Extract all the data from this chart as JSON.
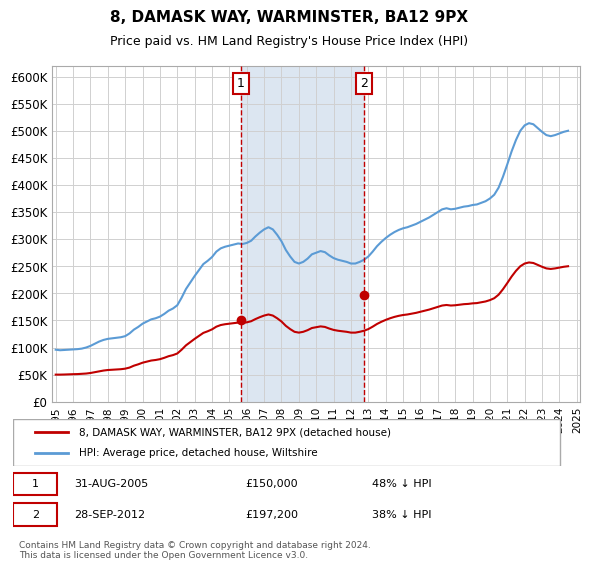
{
  "title": "8, DAMASK WAY, WARMINSTER, BA12 9PX",
  "subtitle": "Price paid vs. HM Land Registry's House Price Index (HPI)",
  "ylabel": "",
  "xlabel": "",
  "ylim": [
    0,
    620000
  ],
  "yticks": [
    0,
    50000,
    100000,
    150000,
    200000,
    250000,
    300000,
    350000,
    400000,
    450000,
    500000,
    550000,
    600000
  ],
  "ytick_labels": [
    "£0",
    "£50K",
    "£100K",
    "£150K",
    "£200K",
    "£250K",
    "£300K",
    "£350K",
    "£400K",
    "£450K",
    "£500K",
    "£550K",
    "£600K"
  ],
  "sale1_date": 2005.664,
  "sale1_price": 150000,
  "sale1_label": "1",
  "sale1_text": "31-AUG-2005",
  "sale1_amount": "£150,000",
  "sale1_pct": "48% ↓ HPI",
  "sale2_date": 2012.747,
  "sale2_price": 197200,
  "sale2_label": "2",
  "sale2_text": "28-SEP-2012",
  "sale2_amount": "£197,200",
  "sale2_pct": "38% ↓ HPI",
  "hpi_color": "#5b9bd5",
  "property_color": "#c00000",
  "shade_color": "#dce6f1",
  "marker_box_color": "#c00000",
  "grid_color": "#d0d0d0",
  "background_color": "#ffffff",
  "legend_line1": "8, DAMASK WAY, WARMINSTER, BA12 9PX (detached house)",
  "legend_line2": "HPI: Average price, detached house, Wiltshire",
  "footer": "Contains HM Land Registry data © Crown copyright and database right 2024.\nThis data is licensed under the Open Government Licence v3.0.",
  "hpi_x": [
    1995,
    1995.25,
    1995.5,
    1995.75,
    1996,
    1996.25,
    1996.5,
    1996.75,
    1997,
    1997.25,
    1997.5,
    1997.75,
    1998,
    1998.25,
    1998.5,
    1998.75,
    1999,
    1999.25,
    1999.5,
    1999.75,
    2000,
    2000.25,
    2000.5,
    2000.75,
    2001,
    2001.25,
    2001.5,
    2001.75,
    2002,
    2002.25,
    2002.5,
    2002.75,
    2003,
    2003.25,
    2003.5,
    2003.75,
    2004,
    2004.25,
    2004.5,
    2004.75,
    2005,
    2005.25,
    2005.5,
    2005.75,
    2006,
    2006.25,
    2006.5,
    2006.75,
    2007,
    2007.25,
    2007.5,
    2007.75,
    2008,
    2008.25,
    2008.5,
    2008.75,
    2009,
    2009.25,
    2009.5,
    2009.75,
    2010,
    2010.25,
    2010.5,
    2010.75,
    2011,
    2011.25,
    2011.5,
    2011.75,
    2012,
    2012.25,
    2012.5,
    2012.75,
    2013,
    2013.25,
    2013.5,
    2013.75,
    2014,
    2014.25,
    2014.5,
    2014.75,
    2015,
    2015.25,
    2015.5,
    2015.75,
    2016,
    2016.25,
    2016.5,
    2016.75,
    2017,
    2017.25,
    2017.5,
    2017.75,
    2018,
    2018.25,
    2018.5,
    2018.75,
    2019,
    2019.25,
    2019.5,
    2019.75,
    2020,
    2020.25,
    2020.5,
    2020.75,
    2021,
    2021.25,
    2021.5,
    2021.75,
    2022,
    2022.25,
    2022.5,
    2022.75,
    2023,
    2023.25,
    2023.5,
    2023.75,
    2024,
    2024.25,
    2024.5
  ],
  "hpi_y": [
    96000,
    95000,
    95500,
    96000,
    96500,
    97000,
    98000,
    100000,
    103000,
    107000,
    111000,
    114000,
    116000,
    117000,
    118000,
    119000,
    121000,
    126000,
    133000,
    138000,
    144000,
    148000,
    152000,
    154000,
    157000,
    162000,
    168000,
    172000,
    178000,
    192000,
    208000,
    220000,
    232000,
    243000,
    254000,
    260000,
    267000,
    277000,
    283000,
    286000,
    288000,
    290000,
    292000,
    291000,
    293000,
    297000,
    305000,
    312000,
    318000,
    322000,
    318000,
    308000,
    296000,
    280000,
    268000,
    258000,
    255000,
    258000,
    264000,
    272000,
    275000,
    278000,
    276000,
    270000,
    265000,
    262000,
    260000,
    258000,
    255000,
    255000,
    258000,
    262000,
    268000,
    277000,
    287000,
    295000,
    302000,
    308000,
    313000,
    317000,
    320000,
    322000,
    325000,
    328000,
    332000,
    336000,
    340000,
    345000,
    350000,
    355000,
    357000,
    355000,
    356000,
    358000,
    360000,
    361000,
    363000,
    364000,
    367000,
    370000,
    375000,
    382000,
    395000,
    415000,
    438000,
    462000,
    483000,
    500000,
    510000,
    514000,
    512000,
    505000,
    498000,
    492000,
    490000,
    492000,
    495000,
    498000,
    500000
  ],
  "prop_x": [
    1995,
    1995.25,
    1995.5,
    1995.75,
    1996,
    1996.25,
    1996.5,
    1996.75,
    1997,
    1997.25,
    1997.5,
    1997.75,
    1998,
    1998.25,
    1998.5,
    1998.75,
    1999,
    1999.25,
    1999.5,
    1999.75,
    2000,
    2000.25,
    2000.5,
    2000.75,
    2001,
    2001.25,
    2001.5,
    2001.75,
    2002,
    2002.25,
    2002.5,
    2002.75,
    2003,
    2003.25,
    2003.5,
    2003.75,
    2004,
    2004.25,
    2004.5,
    2004.75,
    2005,
    2005.25,
    2005.5,
    2005.75,
    2006,
    2006.25,
    2006.5,
    2006.75,
    2007,
    2007.25,
    2007.5,
    2007.75,
    2008,
    2008.25,
    2008.5,
    2008.75,
    2009,
    2009.25,
    2009.5,
    2009.75,
    2010,
    2010.25,
    2010.5,
    2010.75,
    2011,
    2011.25,
    2011.5,
    2011.75,
    2012,
    2012.25,
    2012.5,
    2012.75,
    2013,
    2013.25,
    2013.5,
    2013.75,
    2014,
    2014.25,
    2014.5,
    2014.75,
    2015,
    2015.25,
    2015.5,
    2015.75,
    2016,
    2016.25,
    2016.5,
    2016.75,
    2017,
    2017.25,
    2017.5,
    2017.75,
    2018,
    2018.25,
    2018.5,
    2018.75,
    2019,
    2019.25,
    2019.5,
    2019.75,
    2020,
    2020.25,
    2020.5,
    2020.75,
    2021,
    2021.25,
    2021.5,
    2021.75,
    2022,
    2022.25,
    2022.5,
    2022.75,
    2023,
    2023.25,
    2023.5,
    2023.75,
    2024,
    2024.25,
    2024.5
  ],
  "prop_y": [
    50000,
    50000,
    50200,
    50500,
    50800,
    51000,
    51500,
    52000,
    53000,
    54500,
    56000,
    57500,
    58500,
    59000,
    59500,
    60000,
    61000,
    63000,
    66500,
    69000,
    72000,
    74000,
    76000,
    77000,
    78500,
    81000,
    84000,
    86000,
    89000,
    96000,
    104000,
    110000,
    116000,
    121500,
    127000,
    130000,
    133500,
    138500,
    141500,
    143000,
    144000,
    145000,
    146000,
    145500,
    146500,
    148500,
    152500,
    156000,
    159000,
    161000,
    159000,
    154000,
    148000,
    140000,
    134000,
    129000,
    127500,
    129000,
    132000,
    136000,
    137500,
    139000,
    138000,
    135000,
    132500,
    131000,
    130000,
    129000,
    127500,
    127500,
    129000,
    131000,
    134000,
    138500,
    143500,
    147500,
    151000,
    154000,
    156500,
    158500,
    160000,
    161000,
    162500,
    164000,
    166000,
    168000,
    170000,
    172500,
    175000,
    177500,
    178500,
    177500,
    178000,
    179000,
    180000,
    180500,
    181500,
    182000,
    183500,
    185000,
    187500,
    191000,
    197500,
    207500,
    219000,
    231000,
    241500,
    250000,
    255000,
    257000,
    256000,
    252500,
    249000,
    246000,
    245000,
    246000,
    247500,
    249000,
    250000
  ],
  "xtick_years": [
    1995,
    1996,
    1997,
    1998,
    1999,
    2000,
    2001,
    2002,
    2003,
    2004,
    2005,
    2006,
    2007,
    2008,
    2009,
    2010,
    2011,
    2012,
    2013,
    2014,
    2015,
    2016,
    2017,
    2018,
    2019,
    2020,
    2021,
    2022,
    2023,
    2024,
    2025
  ]
}
